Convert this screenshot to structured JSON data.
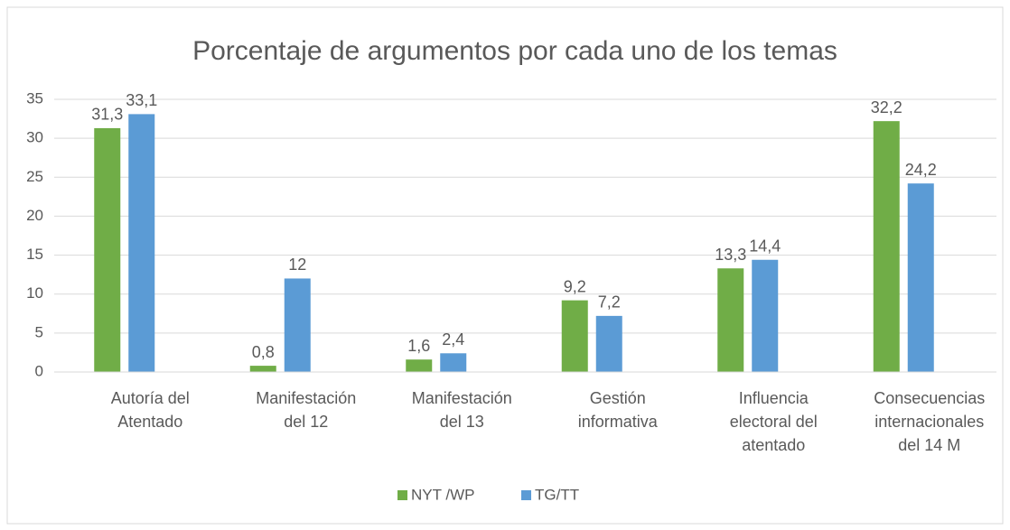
{
  "chart_data": {
    "type": "bar",
    "title": "Porcentaje de argumentos por cada uno de los temas",
    "categories": [
      "Autoría del Atentado",
      "Manifestación del 12",
      "Manifestación del 13",
      "Gestión informativa",
      "Influencia electoral del atentado",
      "Consecuencias internacionales del 14 M"
    ],
    "series": [
      {
        "name": "NYT /WP",
        "color": "#70ad47",
        "values": [
          31.3,
          0.8,
          1.6,
          9.2,
          13.3,
          32.2
        ],
        "value_labels": [
          "31,3",
          "0,8",
          "1,6",
          "9,2",
          "13,3",
          "32,2"
        ]
      },
      {
        "name": "TG/TT",
        "color": "#5b9bd5",
        "values": [
          33.1,
          12,
          2.4,
          7.2,
          14.4,
          24.2
        ],
        "value_labels": [
          "33,1",
          "12",
          "2,4",
          "7,2",
          "14,4",
          "24,2"
        ]
      }
    ],
    "ylim": [
      0,
      35
    ],
    "yticks": [
      0,
      5,
      10,
      15,
      20,
      25,
      30,
      35
    ],
    "grid": true,
    "legend": "bottom"
  }
}
